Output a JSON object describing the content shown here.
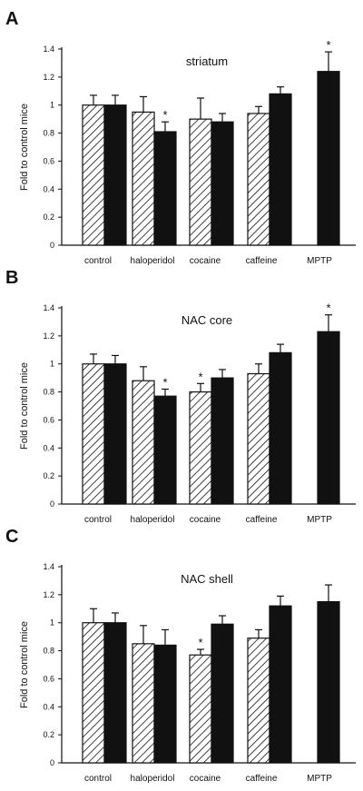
{
  "chart_data": [
    {
      "type": "bar",
      "panel_label": "A",
      "title": "striatum",
      "ylabel": "Fold to control mice",
      "ylim": [
        0,
        1.4
      ],
      "yticks": [
        "0",
        "0.2",
        "0.4",
        "0.6",
        "0.8",
        "1",
        "1.2",
        "1.4"
      ],
      "categories": [
        "control",
        "haloperidol",
        "cocaine",
        "caffeine",
        "MPTP"
      ],
      "series": [
        {
          "style": "hatched",
          "values": [
            1.0,
            0.95,
            0.9,
            0.94,
            null
          ],
          "errors": [
            0.07,
            0.11,
            0.15,
            0.05,
            null
          ],
          "significant": [
            false,
            false,
            false,
            false,
            false
          ]
        },
        {
          "style": "solid",
          "values": [
            1.0,
            0.81,
            0.88,
            1.08,
            1.24
          ],
          "errors": [
            0.07,
            0.07,
            0.06,
            0.05,
            0.14
          ],
          "significant": [
            false,
            true,
            false,
            false,
            true
          ]
        }
      ],
      "significance_marker": "*"
    },
    {
      "type": "bar",
      "panel_label": "B",
      "title": "NAC core",
      "ylabel": "Fold to control mice",
      "ylim": [
        0,
        1.4
      ],
      "yticks": [
        "0",
        "0.2",
        "0.4",
        "0.6",
        "0.8",
        "1",
        "1.2",
        "1.4"
      ],
      "categories": [
        "control",
        "haloperidol",
        "cocaine",
        "caffeine",
        "MPTP"
      ],
      "series": [
        {
          "style": "hatched",
          "values": [
            1.0,
            0.88,
            0.8,
            0.93,
            null
          ],
          "errors": [
            0.07,
            0.1,
            0.06,
            0.07,
            null
          ],
          "significant": [
            false,
            false,
            true,
            false,
            false
          ]
        },
        {
          "style": "solid",
          "values": [
            1.0,
            0.77,
            0.9,
            1.08,
            1.23
          ],
          "errors": [
            0.06,
            0.05,
            0.06,
            0.06,
            0.12
          ],
          "significant": [
            false,
            true,
            false,
            false,
            true
          ]
        }
      ],
      "significance_marker": "*"
    },
    {
      "type": "bar",
      "panel_label": "C",
      "title": "NAC shell",
      "ylabel": "Fold to control mice",
      "ylim": [
        0,
        1.4
      ],
      "yticks": [
        "0",
        "0.2",
        "0.4",
        "0.6",
        "0.8",
        "1",
        "1.2",
        "1.4"
      ],
      "categories": [
        "control",
        "haloperidol",
        "cocaine",
        "caffeine",
        "MPTP"
      ],
      "series": [
        {
          "style": "hatched",
          "values": [
            1.0,
            0.85,
            0.77,
            0.89,
            null
          ],
          "errors": [
            0.1,
            0.13,
            0.04,
            0.06,
            null
          ],
          "significant": [
            false,
            false,
            true,
            false,
            false
          ]
        },
        {
          "style": "solid",
          "values": [
            1.0,
            0.84,
            0.99,
            1.12,
            1.15
          ],
          "errors": [
            0.07,
            0.11,
            0.06,
            0.07,
            0.12
          ],
          "significant": [
            false,
            false,
            false,
            false,
            false
          ]
        }
      ],
      "significance_marker": "*"
    }
  ]
}
